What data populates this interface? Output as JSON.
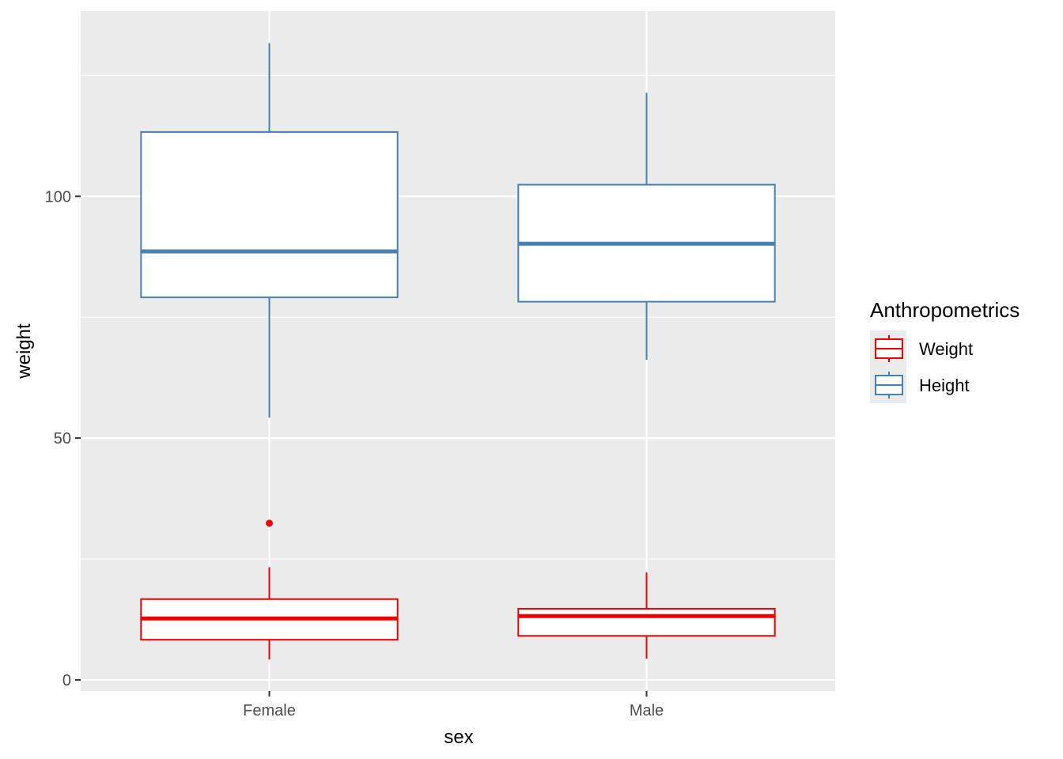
{
  "chart_data": {
    "type": "boxplot",
    "xlabel": "sex",
    "ylabel": "weight",
    "categories": [
      "Female",
      "Male"
    ],
    "ylim": [
      -2.3,
      138.3
    ],
    "y_ticks": [
      0,
      50,
      100
    ],
    "y_tick_labels": [
      "0",
      "50",
      "100"
    ],
    "grid": true,
    "panel_background": "#EBEBEB",
    "grid_color": "#FFFFFF",
    "legend": {
      "title": "Anthropometrics",
      "position": "right",
      "entries": [
        {
          "name": "Weight",
          "color": "#EE0000"
        },
        {
          "name": "Height",
          "color": "#4682B4"
        }
      ]
    },
    "series": [
      {
        "name": "Weight",
        "color": "#EE0000",
        "boxes": [
          {
            "category": "Female",
            "whisker_low": 4.2,
            "q1": 8.3,
            "median": 12.7,
            "q3": 16.7,
            "whisker_high": 23.3,
            "outliers": [
              32.4
            ]
          },
          {
            "category": "Male",
            "whisker_low": 4.4,
            "q1": 9.1,
            "median": 13.2,
            "q3": 14.7,
            "whisker_high": 22.2,
            "outliers": []
          }
        ]
      },
      {
        "name": "Height",
        "color": "#4682B4",
        "boxes": [
          {
            "category": "Female",
            "whisker_low": 54.2,
            "q1": 79.1,
            "median": 88.6,
            "q3": 113.3,
            "whisker_high": 131.7,
            "outliers": []
          },
          {
            "category": "Male",
            "whisker_low": 66.2,
            "q1": 78.2,
            "median": 90.2,
            "q3": 102.4,
            "whisker_high": 121.4,
            "outliers": []
          }
        ]
      }
    ]
  }
}
